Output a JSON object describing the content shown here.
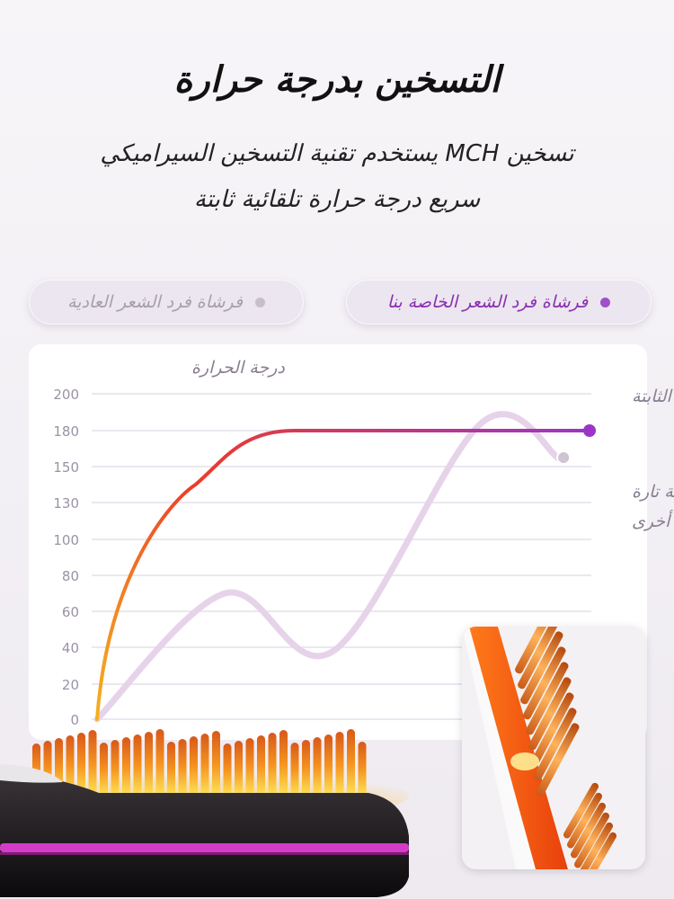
{
  "header": {
    "title": "التسخين بدرجة حرارة",
    "subtitle_line1": "تسخين MCH يستخدم تقنية التسخين السيراميكي",
    "subtitle_line2": "سريع درجة حرارة تلقائية ثابتة"
  },
  "legend": {
    "ours": "فرشاة فرد الشعر الخاصة بنا",
    "normal": "فرشاة فرد الشعر العادية"
  },
  "colors": {
    "ours_start": "#f5b020",
    "ours_mid": "#ee3b28",
    "ours_end": "#9b35c8",
    "normal_line": "#e6d3ea",
    "gridline": "#e4e0ec",
    "tick_text": "#9a92a6",
    "annotation_text": "#8a7e92"
  },
  "chart_data": {
    "type": "line",
    "ylabel": "درجة الحرارة",
    "ylim": [
      0,
      200
    ],
    "ytick_labels": [
      "0",
      "20",
      "40",
      "60",
      "80",
      "100",
      "130",
      "150",
      "180",
      "200"
    ],
    "grid": true,
    "series": [
      {
        "name": "فرشاة فرد الشعر الخاصة بنا",
        "points": [
          [
            0,
            0
          ],
          [
            0.2,
            140
          ],
          [
            0.4,
            180
          ],
          [
            1,
            180
          ]
        ]
      },
      {
        "name": "فرشاة فرد الشعر العادية",
        "points": [
          [
            0,
            0
          ],
          [
            0.26,
            70
          ],
          [
            0.48,
            38
          ],
          [
            0.78,
            184
          ],
          [
            0.94,
            156
          ]
        ]
      }
    ],
    "annotations": {
      "constant": "درجة الحرارة الثابتة",
      "fluctuating_line1": "مرتفعة تارة",
      "fluctuating_line2": "ومنخفضة تارة أخرى"
    }
  },
  "icons": {
    "brush": "heated-bristle-brush-image",
    "closeup": "bristle-closeup-image"
  }
}
